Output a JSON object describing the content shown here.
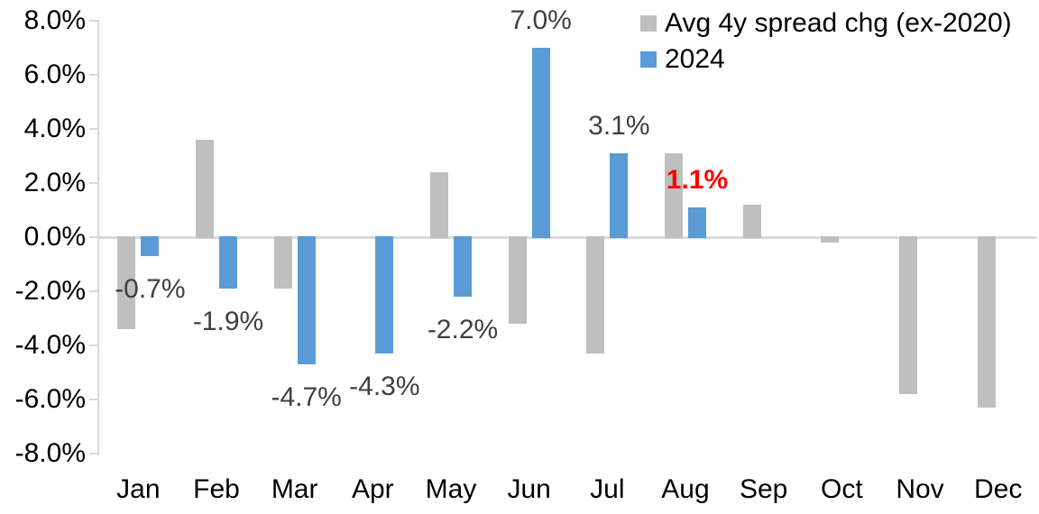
{
  "chart_data": {
    "type": "bar",
    "title": "",
    "categories": [
      "Jan",
      "Feb",
      "Mar",
      "Apr",
      "May",
      "Jun",
      "Jul",
      "Aug",
      "Sep",
      "Oct",
      "Nov",
      "Dec"
    ],
    "series": [
      {
        "name": "Avg 4y spread chg (ex-2020)",
        "color": "#BFBFBF",
        "values": [
          -3.4,
          3.6,
          -1.9,
          0.0,
          2.4,
          -3.2,
          -4.3,
          3.1,
          1.2,
          -0.2,
          -5.8,
          -6.3
        ]
      },
      {
        "name": "2024",
        "color": "#5B9BD5",
        "values": [
          -0.7,
          -1.9,
          -4.7,
          -4.3,
          -2.2,
          7.0,
          3.1,
          1.1,
          null,
          null,
          null,
          null
        ]
      }
    ],
    "data_labels": [
      {
        "category": "Jan",
        "series": "2024",
        "text": "-0.7%",
        "value": -0.7,
        "color": "#404040",
        "bold": false
      },
      {
        "category": "Feb",
        "series": "2024",
        "text": "-1.9%",
        "value": -1.9,
        "color": "#404040",
        "bold": false
      },
      {
        "category": "Mar",
        "series": "2024",
        "text": "-4.7%",
        "value": -4.7,
        "color": "#404040",
        "bold": false
      },
      {
        "category": "Apr",
        "series": "2024",
        "text": "-4.3%",
        "value": -4.3,
        "color": "#404040",
        "bold": false
      },
      {
        "category": "May",
        "series": "2024",
        "text": "-2.2%",
        "value": -2.2,
        "color": "#404040",
        "bold": false
      },
      {
        "category": "Jun",
        "series": "2024",
        "text": "7.0%",
        "value": 7.0,
        "color": "#404040",
        "bold": false
      },
      {
        "category": "Jul",
        "series": "2024",
        "text": "3.1%",
        "value": 3.1,
        "color": "#404040",
        "bold": false
      },
      {
        "category": "Aug",
        "series": "2024",
        "text": "1.1%",
        "value": 1.1,
        "color": "#FF0000",
        "bold": true
      }
    ],
    "y_axis": {
      "tick_labels": [
        "8.0%",
        "6.0%",
        "4.0%",
        "2.0%",
        "0.0%",
        "-2.0%",
        "-4.0%",
        "-6.0%",
        "-8.0%"
      ],
      "tick_values": [
        8,
        6,
        4,
        2,
        0,
        -2,
        -4,
        -6,
        -8
      ]
    },
    "ylim": [
      -8,
      8
    ],
    "legend_position": "top-right",
    "grid": false,
    "colors": {
      "axis_line": "#D9D9D9",
      "tick_text": "#000000",
      "data_label": "#404040",
      "highlight": "#FF0000"
    }
  }
}
